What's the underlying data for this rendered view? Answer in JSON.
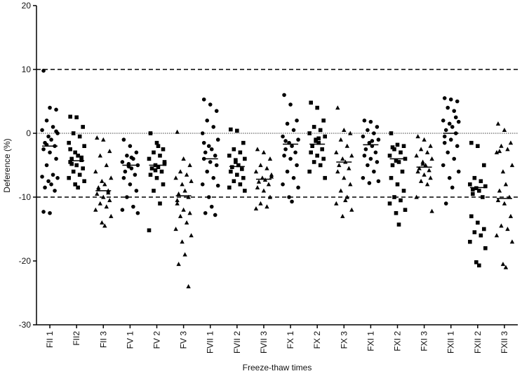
{
  "chart_data": {
    "type": "scatter",
    "y_label": "Deference (%)",
    "x_label": "Freeze-thaw times",
    "categories": [
      "FII 1",
      "FII2",
      "FII 3",
      "FV 1",
      "FV 2",
      "FV 3",
      "FVII 1",
      "FVII 2",
      "FVII 3",
      "FX 1",
      "FX 2",
      "FX 3",
      "FXI 1",
      "FXI 2",
      "FXI 3",
      "FXII 1",
      "FXII 2",
      "FXII 3"
    ],
    "markers": [
      "circle",
      "square",
      "triangle",
      "circle",
      "square",
      "triangle",
      "circle",
      "square",
      "triangle",
      "circle",
      "square",
      "triangle",
      "circle",
      "square",
      "triangle",
      "circle",
      "square",
      "triangle"
    ],
    "color": "#000000",
    "points": [
      [
        9.8,
        4,
        3.7,
        2,
        1,
        0.5,
        0,
        -0.5,
        -1,
        -1.5,
        -2,
        -2.5,
        -3,
        -4,
        -5,
        -6.5,
        -6.8,
        -7,
        -7.5,
        -8,
        -8.5,
        -9,
        -12.3,
        -12.5,
        0.3,
        -1.8
      ],
      [
        2.6,
        2.5,
        1,
        0,
        -0.5,
        -1.5,
        -2,
        -3,
        -3.5,
        -4,
        -4.2,
        -4.5,
        -5,
        -5.5,
        -6,
        -6.5,
        -7,
        -7.5,
        -8,
        -8.5,
        -4.8,
        -3.8,
        -2.5
      ],
      [
        -0.7,
        -1,
        -2.8,
        -3.5,
        -5,
        -6,
        -7,
        -7.5,
        -8,
        -8.5,
        -9,
        -9.5,
        -10,
        -10.5,
        -11,
        -11.5,
        -12,
        -13,
        -14,
        -14.5,
        -8.8,
        -9.3
      ],
      [
        -1,
        -2,
        -3,
        -3.5,
        -4,
        -4.5,
        -5,
        -5.2,
        -5.5,
        -6,
        -6.5,
        -7,
        -8,
        -9,
        -10,
        -11.5,
        -12,
        -12.5,
        -4.8,
        -3.8
      ],
      [
        0,
        -1.5,
        -2.5,
        -3,
        -3.5,
        -4,
        -4.5,
        -5,
        -5.3,
        -5.5,
        -6,
        -6.5,
        -7,
        -8,
        -9,
        -11,
        -15.2,
        -4.8,
        -5.8,
        -2
      ],
      [
        0.2,
        -4,
        -5,
        -6,
        -6.5,
        -7,
        -7.5,
        -8,
        -9,
        -9.5,
        -10,
        -11,
        -12,
        -12.5,
        -13,
        -14,
        -15,
        -16,
        -17,
        -19,
        -20.5,
        -24,
        -10.5
      ],
      [
        5.3,
        4.5,
        3.5,
        2,
        1,
        0,
        -1,
        -2,
        -2.5,
        -3,
        -3.5,
        -4,
        -4.5,
        -5,
        -6,
        -7,
        -8,
        -8.2,
        -10,
        -11.5,
        -12.5,
        -12.8,
        -1.5
      ],
      [
        0.6,
        0.4,
        -1.5,
        -2.5,
        -3,
        -3.5,
        -4,
        -4.5,
        -5,
        -5.3,
        -5.6,
        -6,
        -6.5,
        -7,
        -7.5,
        -8,
        -8.5,
        -9,
        -4.2
      ],
      [
        -2.5,
        -3,
        -4,
        -5,
        -5.5,
        -6,
        -6.5,
        -7,
        -7.3,
        -7.6,
        -8,
        -8.5,
        -9,
        -10,
        -11,
        -11.5,
        -11.8,
        -6.8
      ],
      [
        6,
        4.5,
        2,
        1.5,
        0.5,
        -0.5,
        -1,
        -1.5,
        -2,
        -2.5,
        -3,
        -3.5,
        -4,
        -5,
        -6,
        -7,
        -8,
        -8.5,
        -10,
        -10.7,
        -1.2
      ],
      [
        4.8,
        4,
        2,
        1,
        0.5,
        0,
        -0.5,
        -1,
        -1.5,
        -2,
        -2.5,
        -3,
        -3.5,
        -4,
        -4.5,
        -5,
        -6,
        -7,
        -1.2,
        -0.8
      ],
      [
        4,
        0.5,
        0,
        -1,
        -2,
        -3,
        -3.5,
        -4,
        -4.5,
        -5,
        -5.5,
        -6,
        -7,
        -8,
        -9,
        -10,
        -11,
        -12,
        -13,
        -10.5
      ],
      [
        2,
        1.8,
        1,
        0.5,
        0,
        -0.5,
        -1,
        -1.5,
        -2,
        -2.5,
        -3,
        -3.5,
        -4,
        -4.5,
        -5,
        -6,
        -7,
        -7.5,
        -7.8,
        -1.2
      ],
      [
        0,
        -1.8,
        -2,
        -2.5,
        -3,
        -3.5,
        -4,
        -4.3,
        -4.5,
        -5,
        -6,
        -7,
        -8,
        -9,
        -10,
        -10.5,
        -11,
        -12,
        -12.5,
        -14.3,
        -2.2
      ],
      [
        -0.5,
        -1,
        -2,
        -2.5,
        -3,
        -3.5,
        -4,
        -4.5,
        -5,
        -5.5,
        -5.8,
        -6,
        -6.5,
        -7,
        -7.5,
        -8,
        -10,
        -12.2,
        -4.8
      ],
      [
        5.5,
        5.3,
        5,
        4,
        3.5,
        2,
        1.8,
        1.5,
        1,
        0.5,
        0,
        -0.5,
        -1,
        -2,
        -3,
        -4,
        -5,
        -6,
        -7,
        -8.5,
        -11,
        2.5,
        -1.5
      ],
      [
        -1.5,
        -2,
        -5,
        -7,
        -7.5,
        -8,
        -8.3,
        -8.6,
        -9,
        -9.5,
        -10,
        -13,
        -14,
        -15,
        -15.5,
        -16,
        -17,
        -18,
        -20.2,
        -20.7,
        -8.8
      ],
      [
        1.5,
        0.5,
        -1.5,
        -2,
        -2.5,
        -3,
        -5,
        -6,
        -8,
        -9,
        -10,
        -10.5,
        -11,
        -13,
        -14.5,
        -15,
        -16,
        -17,
        -20.5,
        -21,
        -2.8
      ]
    ],
    "medians": [
      -2,
      -4.3,
      -9,
      -5,
      -5,
      -9.8,
      -4,
      -5.2,
      -7.2,
      -1.7,
      -1.7,
      -4.5,
      -1.8,
      -4,
      -5.3,
      0,
      -8.5,
      -10.2
    ],
    "ylim": [
      -30,
      20
    ],
    "yticks": [
      -30,
      -20,
      -10,
      0,
      10,
      20
    ],
    "reference_lines": [
      {
        "value": 10,
        "style": "dashed"
      },
      {
        "value": 0,
        "style": "dotted"
      },
      {
        "value": -10,
        "style": "dashed"
      }
    ]
  }
}
